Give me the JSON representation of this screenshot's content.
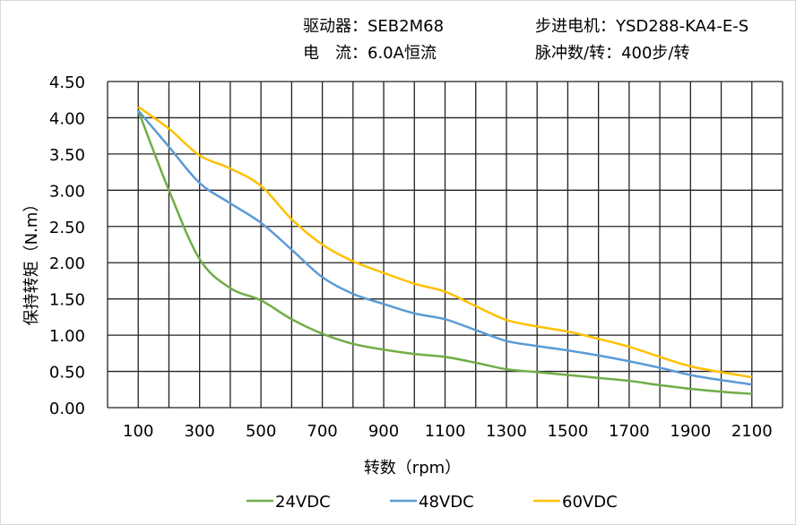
{
  "header": {
    "driver": "驱动器：SEB2M68",
    "motor": "步进电机：YSD288-KA4-E-S",
    "current": "电　流：6.0A恒流",
    "pulses": "脉冲数/转：400步/转"
  },
  "chart_data": {
    "type": "line",
    "title": "",
    "xlabel": "转数（rpm）",
    "ylabel": "保持转矩（N.m）",
    "xlim": [
      0,
      2200
    ],
    "ylim": [
      0,
      4.5
    ],
    "grid": true,
    "legend_position": "bottom",
    "x_ticks": [
      100,
      300,
      500,
      700,
      900,
      1100,
      1300,
      1500,
      1700,
      1900,
      2100
    ],
    "y_ticks": [
      "0.00",
      "0.50",
      "1.00",
      "1.50",
      "2.00",
      "2.50",
      "3.00",
      "3.50",
      "4.00",
      "4.50"
    ],
    "x": [
      100,
      200,
      300,
      400,
      500,
      600,
      700,
      800,
      900,
      1000,
      1100,
      1200,
      1300,
      1400,
      1500,
      1600,
      1700,
      1800,
      1900,
      2000,
      2100
    ],
    "series": [
      {
        "name": "24VDC",
        "color": "#70ad47",
        "values": [
          4.1,
          3.0,
          2.05,
          1.65,
          1.48,
          1.22,
          1.02,
          0.88,
          0.8,
          0.74,
          0.7,
          0.62,
          0.53,
          0.49,
          0.45,
          0.41,
          0.37,
          0.31,
          0.26,
          0.22,
          0.19
        ]
      },
      {
        "name": "48VDC",
        "color": "#5b9bd5",
        "values": [
          4.1,
          3.6,
          3.1,
          2.82,
          2.55,
          2.18,
          1.8,
          1.57,
          1.43,
          1.3,
          1.22,
          1.07,
          0.92,
          0.85,
          0.79,
          0.72,
          0.64,
          0.55,
          0.45,
          0.38,
          0.32
        ]
      },
      {
        "name": "60VDC",
        "color": "#ffc000",
        "values": [
          4.15,
          3.85,
          3.48,
          3.3,
          3.06,
          2.6,
          2.25,
          2.02,
          1.86,
          1.71,
          1.6,
          1.4,
          1.21,
          1.12,
          1.05,
          0.95,
          0.84,
          0.7,
          0.57,
          0.49,
          0.42
        ]
      }
    ]
  }
}
